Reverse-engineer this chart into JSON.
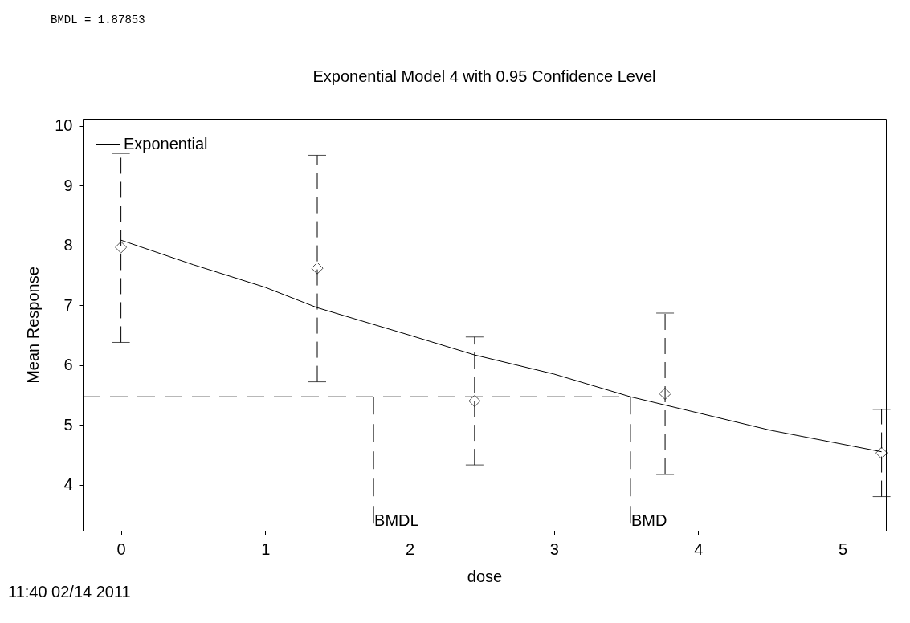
{
  "chart_data": {
    "type": "scatter",
    "title": "Exponential Model 4 with 0.95 Confidence Level",
    "xlabel": "dose",
    "ylabel": "Mean Response",
    "xlim": [
      -0.265,
      5.3
    ],
    "ylim": [
      3.23,
      10.12
    ],
    "xticks": [
      0,
      1,
      2,
      3,
      4,
      5
    ],
    "yticks": [
      4,
      5,
      6,
      7,
      8,
      9,
      10
    ],
    "grid": false,
    "legend": "top left",
    "series": [
      {
        "marker": "diamond",
        "color": "#000000",
        "x": [
          0,
          1.36,
          2.45,
          3.77,
          5.27
        ],
        "values": [
          7.97,
          7.62,
          5.4,
          5.52,
          4.53
        ],
        "errors": [
          [
            6.38,
            9.54
          ],
          [
            5.72,
            9.51
          ],
          [
            4.33,
            6.47
          ],
          [
            4.17,
            6.87
          ],
          [
            3.8,
            5.26
          ]
        ]
      },
      {
        "type": "line",
        "name": "Exponential",
        "color": "#000000",
        "line_style": "solid",
        "x": [
          0,
          0.5,
          1,
          1.36,
          2,
          2.45,
          3,
          3.53,
          4,
          4.5,
          5.27
        ],
        "values": [
          8.09,
          7.68,
          7.3,
          6.96,
          6.5,
          6.17,
          5.85,
          5.47,
          5.2,
          4.91,
          4.55
        ]
      },
      {
        "type": "line",
        "color": "#000000",
        "line_style": "dashed",
        "x": [
          -0.265,
          3.53
        ],
        "values": [
          5.47,
          5.47
        ]
      },
      {
        "type": "line",
        "color": "#000000",
        "line_style": "dashed",
        "x": [
          1.75,
          1.75
        ],
        "values": [
          5.47,
          3.23
        ]
      },
      {
        "type": "line",
        "color": "#000000",
        "line_style": "dashed",
        "x": [
          3.53,
          3.53
        ],
        "values": [
          5.47,
          3.23
        ]
      }
    ],
    "annotations": [
      "BMDL =       1.87853",
      "11:40 02/14 2011",
      {
        "text": "BMDL",
        "x": 1.75,
        "y": 3.23
      },
      {
        "text": "BMD",
        "x": 3.53,
        "y": 3.23
      }
    ]
  }
}
